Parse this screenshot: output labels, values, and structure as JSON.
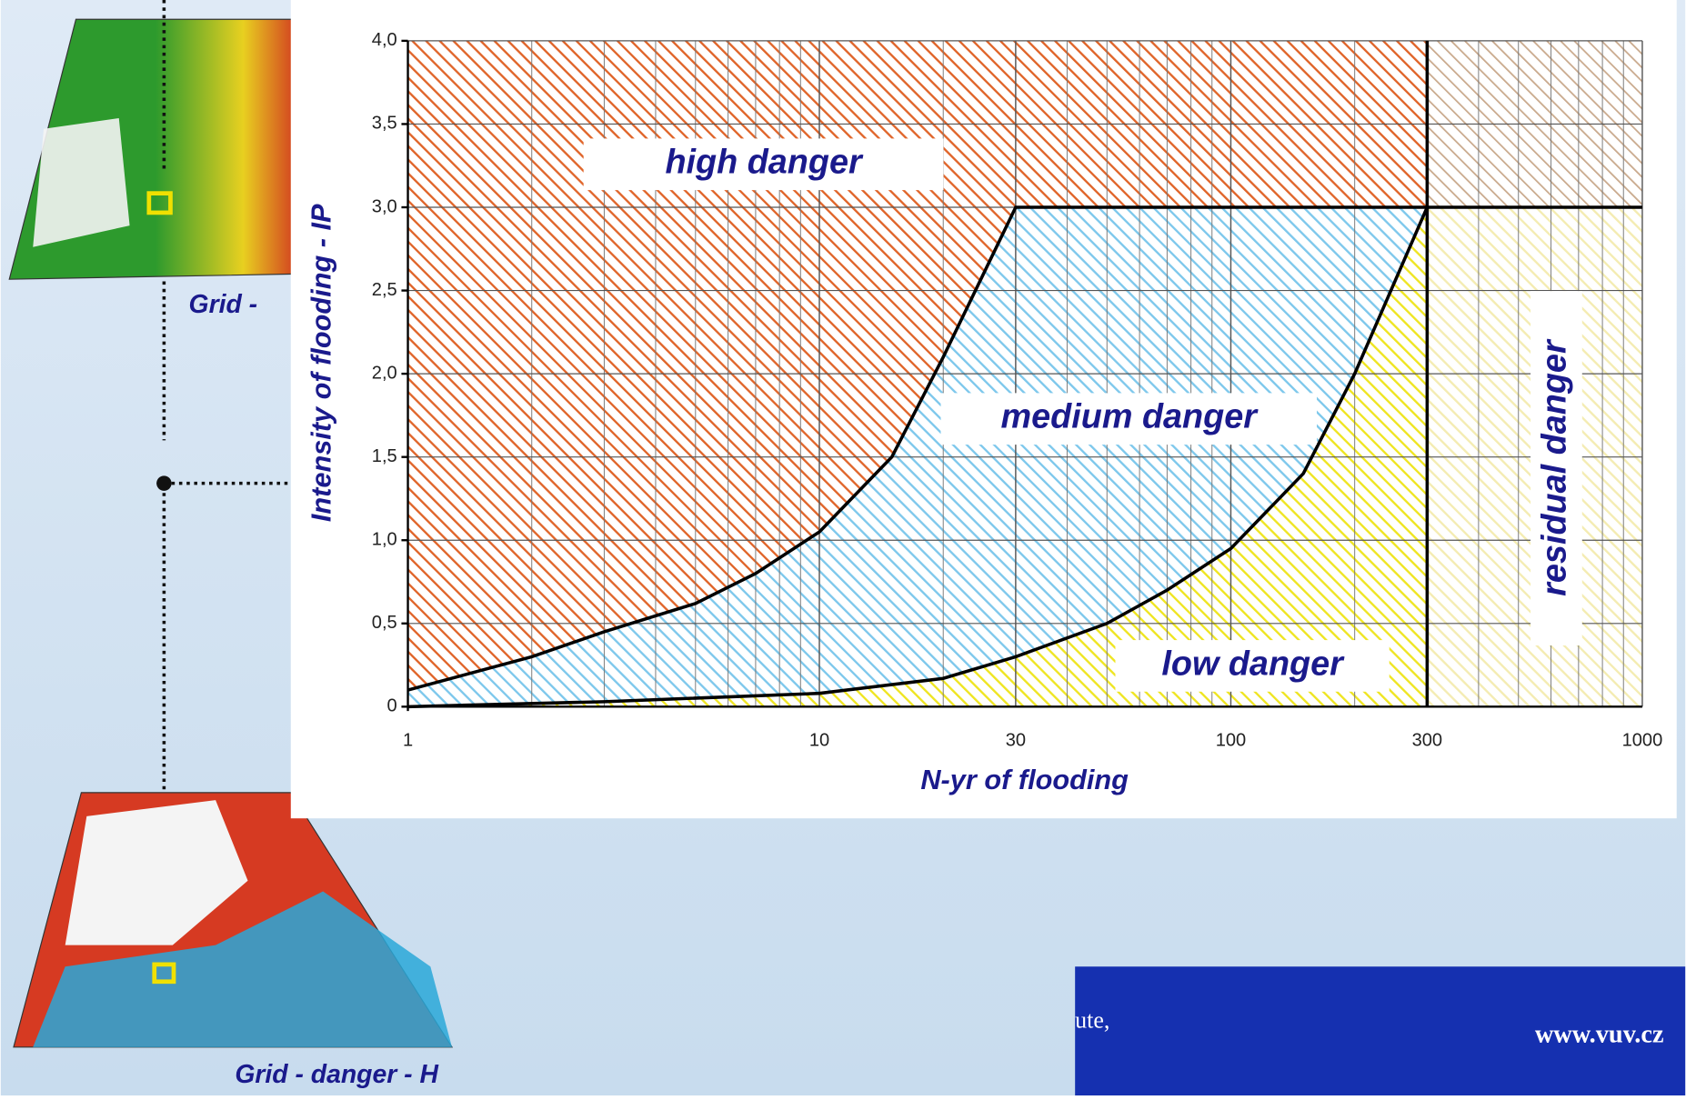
{
  "chart_data": {
    "type": "danger-matrix",
    "x_label": "N-yr of flooding",
    "y_label": "Intensity of flooding - IP",
    "xscale": "log",
    "xlim": [
      1,
      1000
    ],
    "xticks": [
      1,
      10,
      30,
      100,
      300,
      1000
    ],
    "ylim": [
      0,
      4
    ],
    "yticks": [
      0,
      {
        "value": 0.5,
        "label": "0,5"
      },
      {
        "value": 1,
        "label": "1,0"
      },
      {
        "value": 1.5,
        "label": "1,5"
      },
      {
        "value": 2,
        "label": "2,0"
      },
      {
        "value": 2.5,
        "label": "2,5"
      },
      {
        "value": 3,
        "label": "3,0"
      },
      {
        "value": 3.5,
        "label": "3,5"
      },
      {
        "value": 4,
        "label": "4,0"
      }
    ],
    "grid": true,
    "series": [
      {
        "color": "#000000",
        "x": [
          1,
          2,
          3,
          5,
          7,
          10,
          15,
          20,
          30,
          300
        ],
        "values": [
          0.1,
          0.3,
          0.45,
          0.62,
          0.8,
          1.05,
          1.5,
          2.1,
          3.0,
          3.0
        ]
      },
      {
        "color": "#000000",
        "x": [
          1,
          3,
          10,
          20,
          30,
          50,
          70,
          100,
          150,
          200,
          300
        ],
        "values": [
          0,
          0.03,
          0.08,
          0.17,
          0.3,
          0.5,
          0.7,
          0.95,
          1.4,
          2.0,
          3.0
        ]
      }
    ],
    "regions": [
      {
        "label": "high danger",
        "color": "#e0652a"
      },
      {
        "label": "medium danger",
        "color": "#7ec8ec"
      },
      {
        "label": "low danger",
        "color": "#efe522"
      },
      {
        "label": "residual danger",
        "color": "#f4ecb2"
      }
    ],
    "residual_top_color": "#c9a98c"
  },
  "slide": {
    "map_caption_top": "Grid -",
    "map_caption_bottom": "Grid - danger - H",
    "footer_partial": "ute,",
    "footer_url": "www.vuv.cz"
  }
}
